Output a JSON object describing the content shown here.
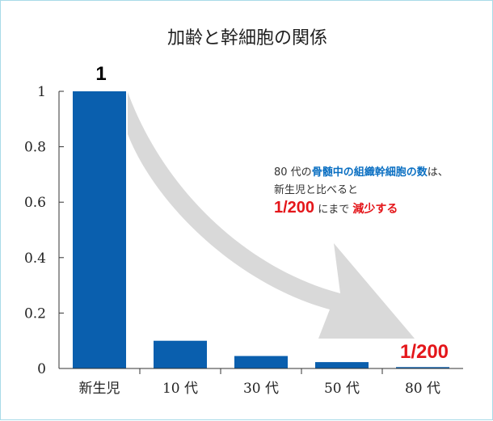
{
  "chart_data": {
    "type": "bar",
    "title": "加齢と幹細胞の関係",
    "categories": [
      "新生児",
      "10 代",
      "30 代",
      "50 代",
      "80 代"
    ],
    "values": [
      1,
      0.1,
      0.045,
      0.023,
      0.005
    ],
    "ylim": [
      0,
      1
    ],
    "yticks": [
      "0",
      "0.2",
      "0.4",
      "0.6",
      "0.8",
      "1"
    ],
    "bar_color": "#0a5fae",
    "annotations": {
      "first_bar_label": "1",
      "last_bar_label": "1/200",
      "callout": {
        "line1_prefix": "80 代の",
        "line1_highlight": "骨髄中の組織幹細胞の数",
        "line1_suffix": "は、",
        "line2": "新生児と比べると",
        "line3_ratio": "1/200",
        "line3_mid": " にまで ",
        "line3_highlight": "減少する"
      }
    },
    "colors": {
      "accent_blue": "#0a6fc2",
      "accent_red": "#e4161a",
      "arrow": "#d9d9d9"
    }
  }
}
